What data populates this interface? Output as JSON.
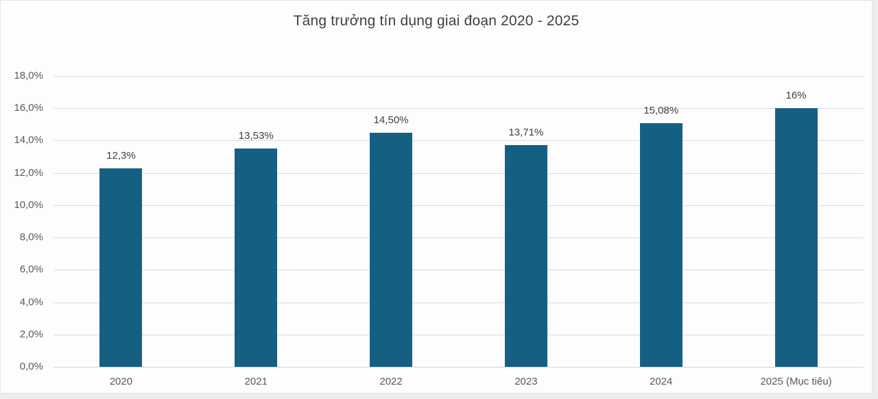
{
  "chart_data": {
    "type": "bar",
    "title": "Tăng trưởng tín dụng giai đoạn 2020 - 2025",
    "categories": [
      "2020",
      "2021",
      "2022",
      "2023",
      "2024",
      "2025 (Mục tiêu)"
    ],
    "values": [
      12.3,
      13.53,
      14.5,
      13.71,
      15.08,
      16
    ],
    "value_labels": [
      "12,3%",
      "13,53%",
      "14,50%",
      "13,71%",
      "15,08%",
      "16%"
    ],
    "xlabel": "",
    "ylabel": "",
    "ylim": [
      0,
      18
    ],
    "ytick_step": 2,
    "ytick_labels": [
      "0,0%",
      "2,0%",
      "4,0%",
      "6,0%",
      "8,0%",
      "10,0%",
      "12,0%",
      "14,0%",
      "16,0%",
      "18,0%"
    ],
    "grid": true,
    "legend_position": "none",
    "colors": {
      "bar": "#156082",
      "title_text": "#3F3F46",
      "data_label_text": "#404040",
      "axis_label_text": "#595959",
      "gridline": "#DBDBE1",
      "background": "#FDFDFE"
    }
  }
}
